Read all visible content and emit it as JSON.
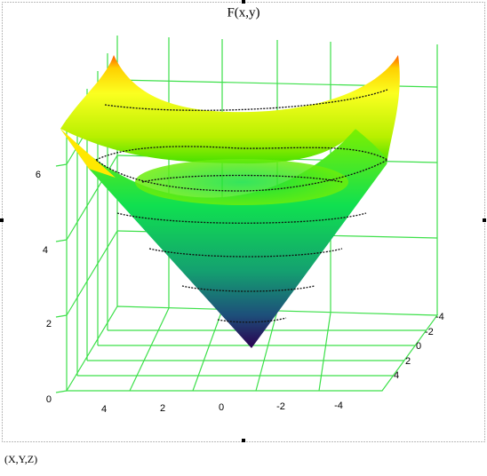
{
  "plot": {
    "title": "F(x,y)",
    "zticks": [
      0,
      2,
      4,
      6
    ],
    "xticks": [
      4,
      2,
      0,
      -2,
      -4
    ],
    "yticks": [
      -4,
      -2,
      0,
      2,
      4
    ],
    "caption": "(X,Y,Z)"
  }
}
